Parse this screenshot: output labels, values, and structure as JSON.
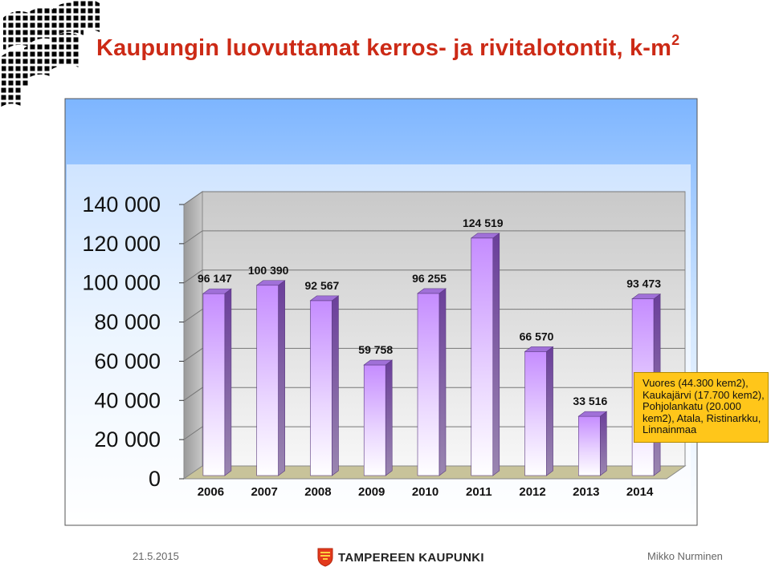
{
  "slide": {
    "title": "Kaupungin luovuttamat kerros- ja rivitalotontit, k-m",
    "title_sup": "2",
    "callout": "Vuores (44.300 kem2), Kaukajärvi (17.700 kem2), Pohjolankatu (20.000 kem2), Atala, Ristinarkku, Linnainmaa",
    "footer_date": "21.5.2015",
    "footer_org": "TAMPEREEN KAUPUNKI",
    "footer_author": "Mikko Nurminen"
  },
  "colors": {
    "title": "#cc2a16",
    "bar_top": "#c58cff",
    "bar_bottom": "#ffffff",
    "bar_side": "#7a4fa8",
    "bar_cap": "#a070d8",
    "callout_bg": "#ffc61a",
    "frame_top": "#7fb8ff",
    "frame_bottom": "#ffffff"
  },
  "chart_data": {
    "type": "bar",
    "categories": [
      "2006",
      "2007",
      "2008",
      "2009",
      "2010",
      "2011",
      "2012",
      "2013",
      "2014"
    ],
    "values": [
      96147,
      100390,
      92567,
      59758,
      96255,
      124519,
      66570,
      33516,
      93473
    ],
    "value_labels": [
      "96 147",
      "100 390",
      "92 567",
      "59 758",
      "96 255",
      "124 519",
      "66 570",
      "33 516",
      "93 473"
    ],
    "ylim": [
      0,
      140000
    ],
    "yticks": [
      0,
      20000,
      40000,
      60000,
      80000,
      100000,
      120000,
      140000
    ],
    "ytick_labels": [
      "0",
      "20 000",
      "40 000",
      "60 000",
      "80 000",
      "100 000",
      "120 000",
      "140 000"
    ],
    "grid": true,
    "style": "3d-columns"
  }
}
